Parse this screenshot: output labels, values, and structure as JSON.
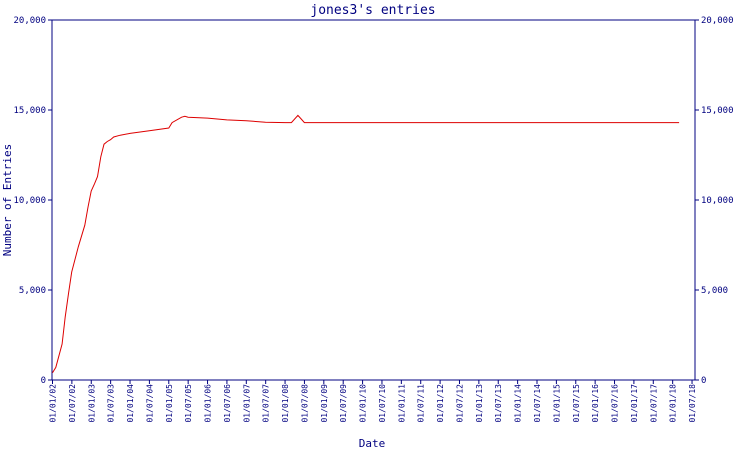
{
  "chart_data": {
    "type": "line",
    "title": "jones3's entries",
    "xlabel": "Date",
    "ylabel": "Number of Entries",
    "ylim": [
      0,
      20000
    ],
    "y_ticks": [
      "0",
      "5,000",
      "10,000",
      "15,000",
      "20,000"
    ],
    "y_tick_values": [
      0,
      5000,
      10000,
      15000,
      20000
    ],
    "x_ticks": [
      "01/01/02",
      "01/07/02",
      "01/01/03",
      "01/07/03",
      "01/01/04",
      "01/07/04",
      "01/01/05",
      "01/07/05",
      "01/01/06",
      "01/07/06",
      "01/01/07",
      "01/07/07",
      "01/01/08",
      "01/07/08",
      "01/01/09",
      "01/07/09",
      "01/01/10",
      "01/07/10",
      "01/01/11",
      "01/07/11",
      "01/01/12",
      "01/07/12",
      "01/01/13",
      "01/07/13",
      "01/01/14",
      "01/07/14",
      "01/01/15",
      "01/07/15",
      "01/01/16",
      "01/07/16",
      "01/01/17",
      "01/07/17",
      "01/01/18",
      "01/07/18"
    ],
    "grid": false,
    "colors": {
      "line": "#dd0000",
      "axis": "#000080",
      "text": "#000080"
    },
    "series": [
      {
        "x": [
          "2002-01-01",
          "2002-02-01",
          "2002-04-01",
          "2002-05-01",
          "2002-06-01",
          "2002-07-01",
          "2002-09-01",
          "2002-11-01",
          "2002-12-01",
          "2003-01-01",
          "2003-02-01",
          "2003-03-01",
          "2003-04-01",
          "2003-05-01",
          "2003-06-01",
          "2003-07-01",
          "2003-08-01",
          "2003-10-01",
          "2004-01-01",
          "2004-07-01",
          "2005-01-01",
          "2005-02-01",
          "2005-05-01",
          "2005-06-01",
          "2005-07-01",
          "2006-01-01",
          "2006-07-01",
          "2007-01-01",
          "2007-07-01",
          "2008-01-01",
          "2008-03-01",
          "2008-05-01",
          "2008-06-01",
          "2008-07-01",
          "2009-01-01",
          "2010-01-01",
          "2011-01-01",
          "2012-01-01",
          "2013-01-01",
          "2014-01-01",
          "2015-01-01",
          "2016-01-01",
          "2017-01-01",
          "2018-01-01",
          "2018-03-01"
        ],
        "y": [
          400,
          700,
          2000,
          3500,
          4800,
          6000,
          7400,
          8600,
          9600,
          10500,
          10900,
          11300,
          12400,
          13100,
          13250,
          13350,
          13500,
          13600,
          13700,
          13850,
          14000,
          14300,
          14600,
          14650,
          14600,
          14550,
          14450,
          14400,
          14320,
          14300,
          14300,
          14700,
          14500,
          14300,
          14300,
          14300,
          14300,
          14300,
          14300,
          14300,
          14300,
          14300,
          14300,
          14300,
          14300
        ]
      }
    ]
  }
}
